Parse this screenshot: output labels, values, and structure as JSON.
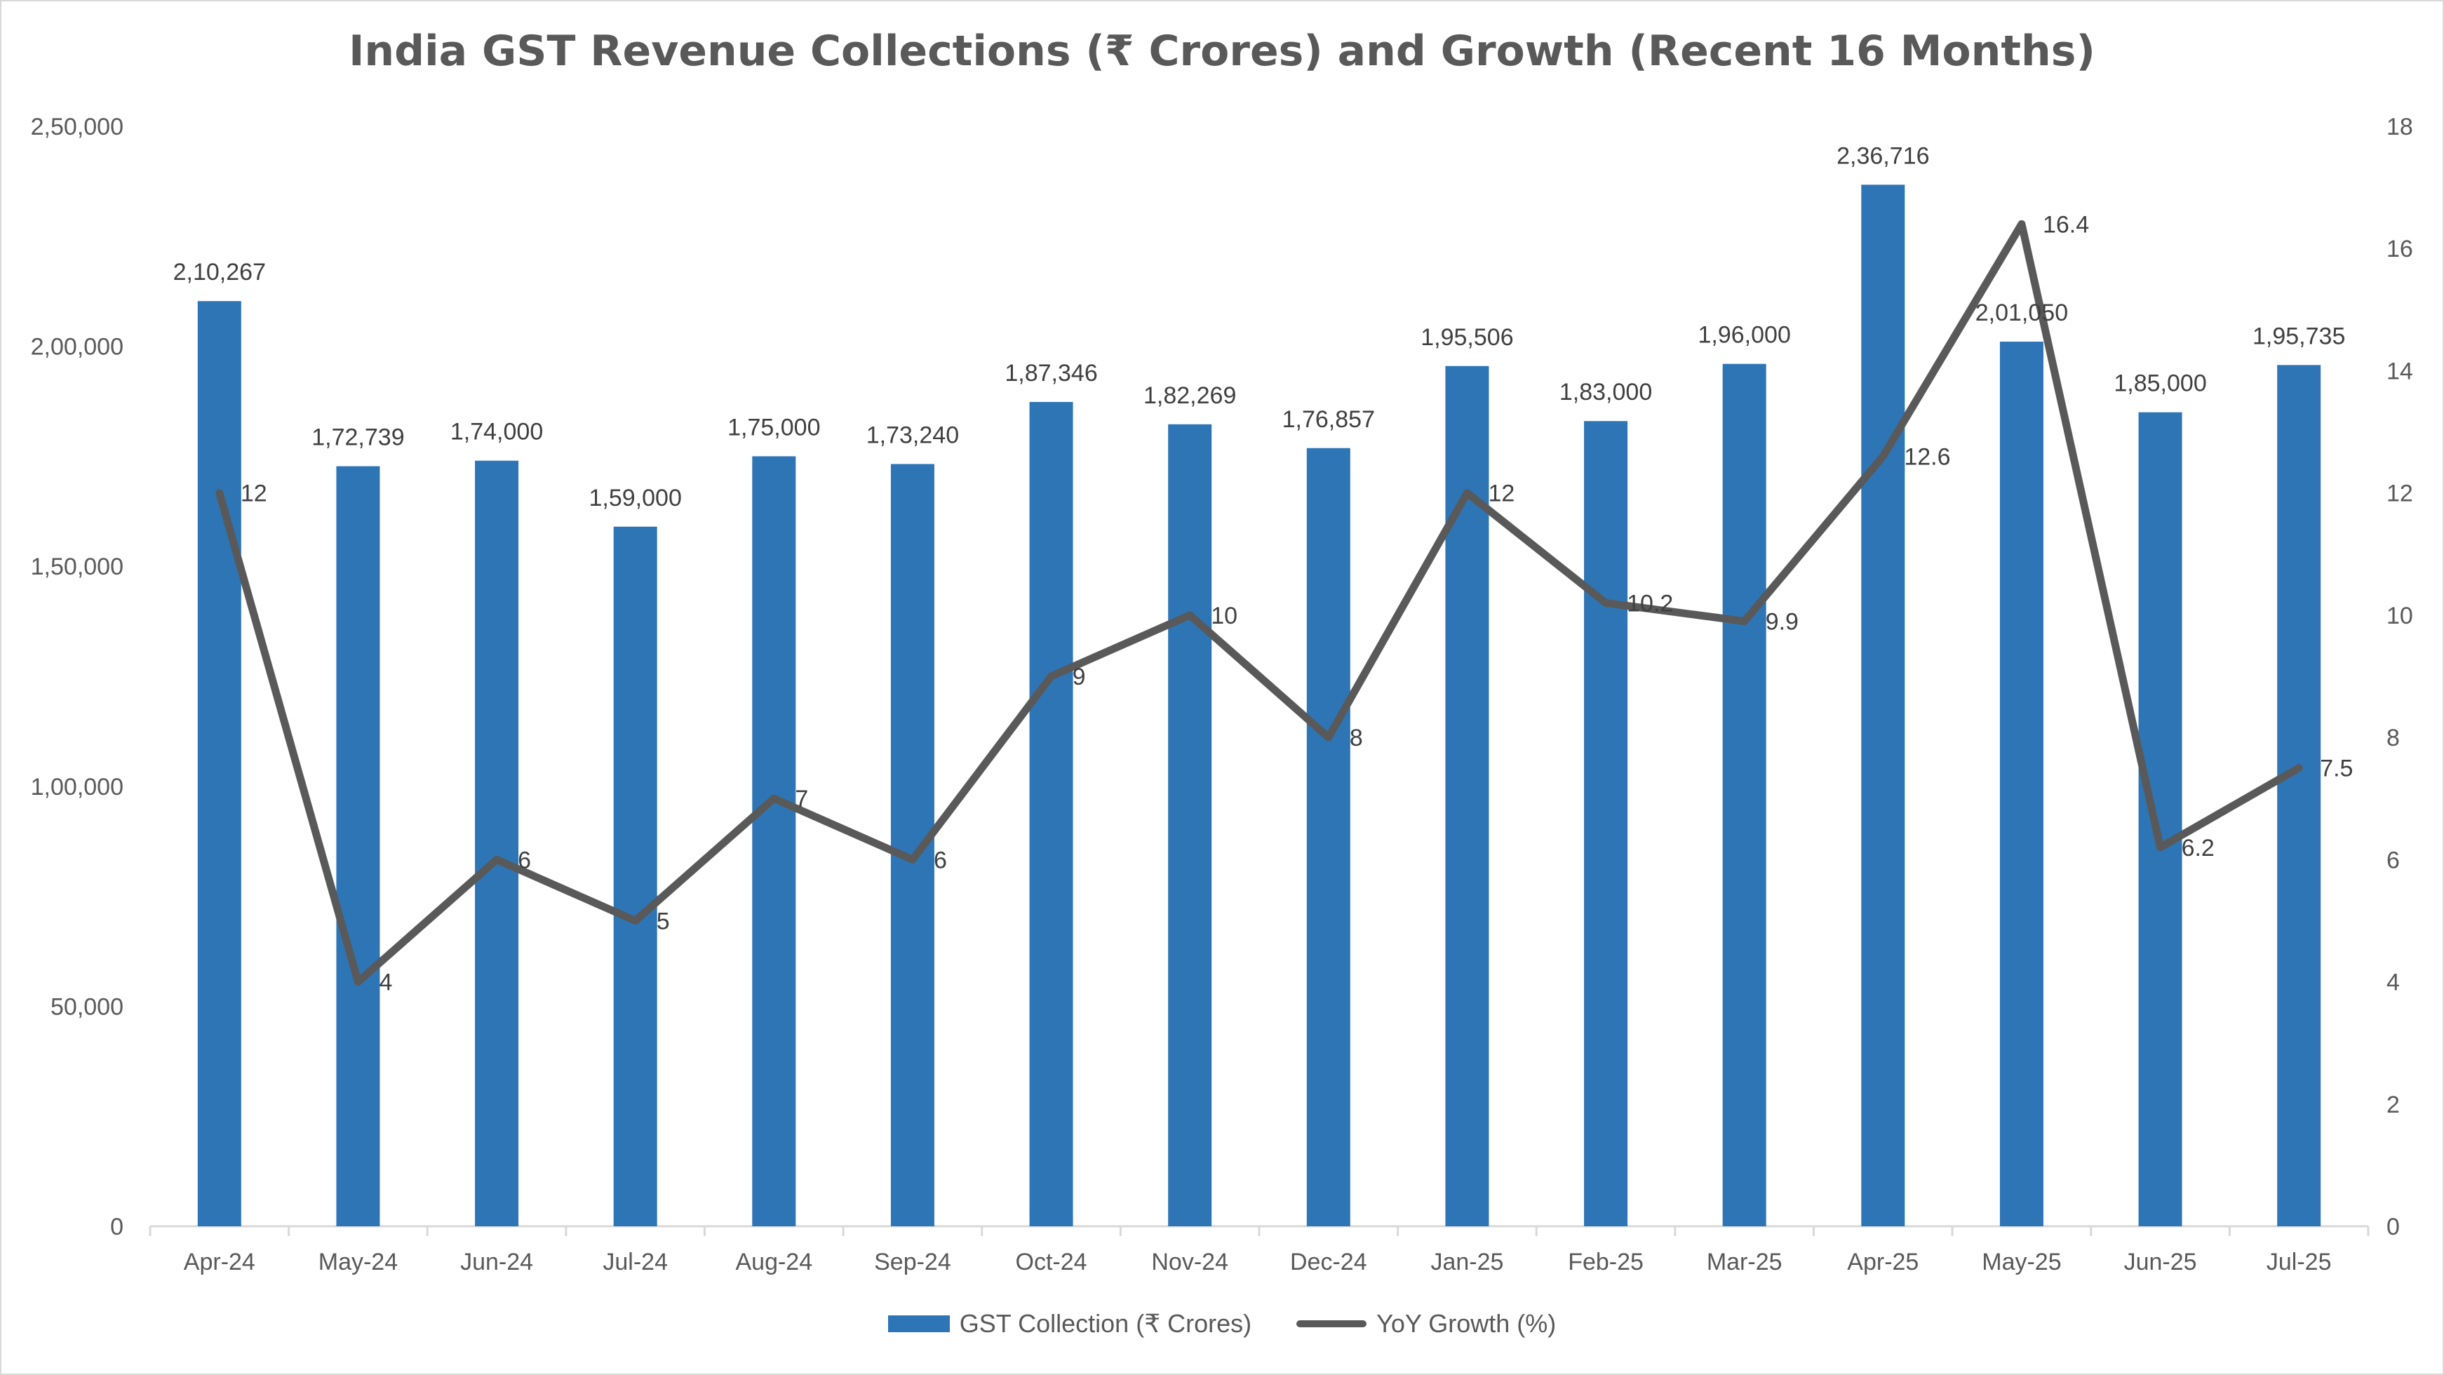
{
  "chart_data": {
    "type": "bar+line",
    "title": "India GST Revenue Collections (₹ Crores) and Growth (Recent 16 Months)",
    "categories": [
      "Apr-24",
      "May-24",
      "Jun-24",
      "Jul-24",
      "Aug-24",
      "Sep-24",
      "Oct-24",
      "Nov-24",
      "Dec-24",
      "Jan-25",
      "Feb-25",
      "Mar-25",
      "Apr-25",
      "May-25",
      "Jun-25",
      "Jul-25"
    ],
    "series": [
      {
        "name": "GST Collection (₹ Crores)",
        "type": "bar",
        "axis": "left",
        "color": "#2e75b6",
        "values": [
          210267,
          172739,
          174000,
          159000,
          175000,
          173240,
          187346,
          182269,
          176857,
          195506,
          183000,
          196000,
          236716,
          201050,
          185000,
          195735
        ],
        "labels": [
          "2,10,267",
          "1,72,739",
          "1,74,000",
          "1,59,000",
          "1,75,000",
          "1,73,240",
          "1,87,346",
          "1,82,269",
          "1,76,857",
          "1,95,506",
          "1,83,000",
          "1,96,000",
          "2,36,716",
          "2,01,050",
          "1,85,000",
          "1,95,735"
        ]
      },
      {
        "name": "YoY Growth (%)",
        "type": "line",
        "axis": "right",
        "color": "#595959",
        "values": [
          12,
          4,
          6,
          5,
          7,
          6,
          9,
          10,
          8,
          12,
          10.2,
          9.9,
          12.6,
          16.4,
          6.2,
          7.5
        ],
        "labels": [
          "12",
          "4",
          "6",
          "5",
          "7",
          "6",
          "9",
          "10",
          "8",
          "12",
          "10.2",
          "9.9",
          "12.6",
          "16.4",
          "6.2",
          "7.5"
        ]
      }
    ],
    "y_left": {
      "min": 0,
      "max": 250000,
      "ticks": [
        0,
        50000,
        100000,
        150000,
        200000,
        250000
      ],
      "tick_labels": [
        "0",
        "50,000",
        "1,00,000",
        "1,50,000",
        "2,00,000",
        "2,50,000"
      ]
    },
    "y_right": {
      "min": 0,
      "max": 18,
      "ticks": [
        0,
        2,
        4,
        6,
        8,
        10,
        12,
        14,
        16,
        18
      ],
      "tick_labels": [
        "0",
        "2",
        "4",
        "6",
        "8",
        "10",
        "12",
        "14",
        "16",
        "18"
      ]
    },
    "xlabel": "",
    "ylabel": "",
    "grid": false,
    "legend": "bottom-center"
  }
}
